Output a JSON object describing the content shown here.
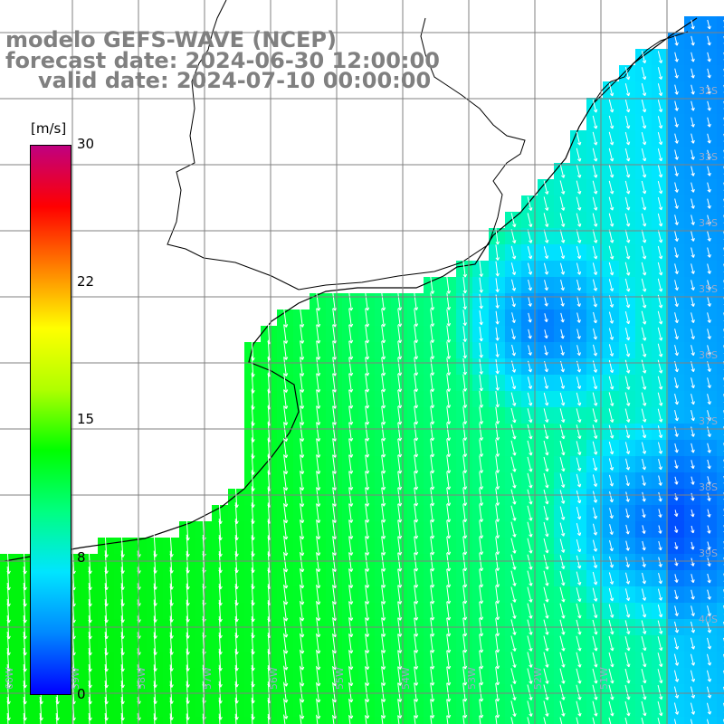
{
  "title": {
    "line1": "modelo GEFS-WAVE (NCEP)",
    "line2": "forecast date: 2024-06-30 12:00:00",
    "line3": "valid date: 2024-07-10 00:00:00"
  },
  "colorbar": {
    "unit": "[m/s]",
    "ticks": [
      "30",
      "22",
      "15",
      "8",
      "0"
    ],
    "range": [
      0,
      30
    ],
    "colors": [
      "#0000ff",
      "#0088ff",
      "#00e5ff",
      "#00ff80",
      "#00ff00",
      "#b0ff00",
      "#ffff00",
      "#ff8000",
      "#ff0000",
      "#c00080"
    ]
  },
  "map": {
    "lat_labels": [
      "32S",
      "33S",
      "34S",
      "35S",
      "36S",
      "37S",
      "38S",
      "39S",
      "40S"
    ],
    "lon_labels": [
      "60W",
      "59W",
      "58W",
      "57W",
      "56W",
      "55W",
      "54W",
      "53W",
      "52W",
      "51W"
    ],
    "land_color": "#ffffff",
    "grid_color": "#808080",
    "arrow_color": "#ffffff"
  }
}
